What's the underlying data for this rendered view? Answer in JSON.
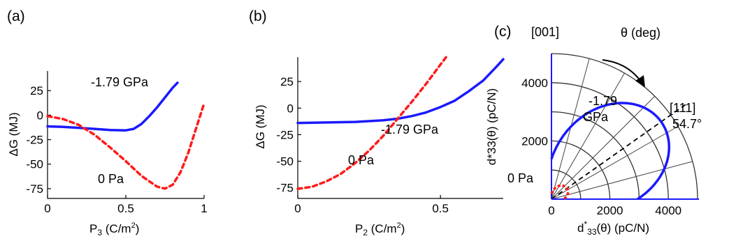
{
  "chart_data": [
    {
      "panel": "(a)",
      "type": "line",
      "xlabel": "P",
      "xlabel_sub": "3",
      "xlabel_unit_pre": " (C/m",
      "xlabel_unit_sup": "2",
      "xlabel_unit_post": ")",
      "ylabel": "ΔG (MJ)",
      "xlim": [
        0,
        1
      ],
      "ylim": [
        -85,
        45
      ],
      "xticks": [
        0,
        0.5,
        1
      ],
      "xtick_labels": [
        "0",
        "0.5",
        "1"
      ],
      "yticks": [
        25,
        0,
        -25,
        -50,
        -75
      ],
      "ytick_labels": [
        "25",
        "0",
        "-25",
        "-50",
        "-75"
      ],
      "series": [
        {
          "name": "-1.79 GPa",
          "color": "#1a1aff",
          "style": "solid",
          "x": [
            0,
            0.1,
            0.2,
            0.3,
            0.4,
            0.5,
            0.55,
            0.6,
            0.65,
            0.7,
            0.75,
            0.8,
            0.83
          ],
          "y": [
            -11.5,
            -12,
            -13,
            -14,
            -15.2,
            -15.5,
            -14,
            -9,
            -1,
            8,
            18,
            28,
            33
          ]
        },
        {
          "name": "0 Pa",
          "color": "#ff1a1a",
          "style": "dashed",
          "x": [
            0,
            0.1,
            0.2,
            0.3,
            0.4,
            0.5,
            0.6,
            0.7,
            0.75,
            0.8,
            0.85,
            0.9,
            0.95,
            1.0
          ],
          "y": [
            -1,
            -4,
            -10,
            -20,
            -33,
            -47,
            -62,
            -73,
            -75,
            -71,
            -58,
            -38,
            -13,
            12
          ]
        }
      ]
    },
    {
      "panel": "(b)",
      "type": "line",
      "xlabel": "P",
      "xlabel_sub": "2",
      "xlabel_unit_pre": " (C/m",
      "xlabel_unit_sup": "2",
      "xlabel_unit_post": ")",
      "ylabel": "ΔG (MJ)",
      "xlim": [
        0,
        0.72
      ],
      "ylim": [
        -85,
        48
      ],
      "xticks": [
        0,
        0.5
      ],
      "xtick_labels": [
        "0",
        "0.5"
      ],
      "yticks": [
        25,
        0,
        -25,
        -50,
        -75
      ],
      "ytick_labels": [
        "25",
        "0",
        "-25",
        "-50",
        "-75"
      ],
      "series": [
        {
          "name": "-1.79 GPa",
          "color": "#1a1aff",
          "style": "solid",
          "x": [
            0,
            0.1,
            0.2,
            0.3,
            0.35,
            0.4,
            0.45,
            0.5,
            0.55,
            0.6,
            0.65,
            0.7,
            0.72
          ],
          "y": [
            -14,
            -13.5,
            -13,
            -11.5,
            -10,
            -7.5,
            -4,
            1,
            7,
            16,
            26,
            40,
            46
          ]
        },
        {
          "name": "0 Pa",
          "color": "#ff1a1a",
          "style": "dashed",
          "x": [
            0,
            0.05,
            0.1,
            0.15,
            0.2,
            0.25,
            0.3,
            0.35,
            0.4,
            0.45,
            0.5,
            0.52
          ],
          "y": [
            -76,
            -74,
            -69,
            -62,
            -52,
            -40,
            -26,
            -10,
            6,
            23,
            41,
            48
          ]
        }
      ]
    },
    {
      "panel": "(c)",
      "type": "polar",
      "xlabel": "d",
      "xlabel_sup": "*",
      "xlabel_sub": "33",
      "xlabel_rest": "(θ) (pC/N)",
      "ylabel": "d*33(θ) (pC/N)",
      "xlim": [
        0,
        5000
      ],
      "ylim": [
        0,
        5000
      ],
      "rings": [
        1000,
        2000,
        3000,
        4000,
        5000
      ],
      "xticks": [
        0,
        2000,
        4000
      ],
      "xtick_labels": [
        "0",
        "2000",
        "4000"
      ],
      "yticks": [
        2000,
        4000
      ],
      "ytick_labels": [
        "2000",
        "4000"
      ],
      "radial_angles_deg": [
        15,
        30,
        45,
        54.7,
        60,
        75
      ],
      "annotations": {
        "dir_001": "[001]",
        "theta": "θ (deg)",
        "dir_111": "[111]",
        "angle_111": "54.7°",
        "label_blue_1": "-1.79",
        "label_blue_2": "GPa",
        "label_red": "0 Pa"
      },
      "series": [
        {
          "name": "-1.79 GPa",
          "color": "#1a1aff",
          "style": "solid",
          "peak_theta_deg": 54.7,
          "peak_value": 4600
        },
        {
          "name": "0 Pa",
          "color": "#ff1a1a",
          "style": "dashed",
          "peak_theta_deg": 54.7,
          "peak_value": 650
        }
      ]
    }
  ]
}
